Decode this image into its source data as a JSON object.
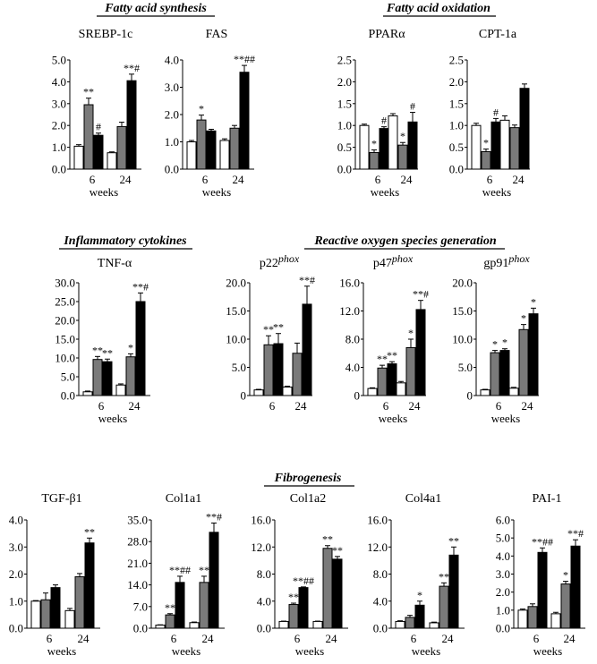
{
  "colors": {
    "control": "#ffffff",
    "treatment_a": "#7a7a7a",
    "treatment_b": "#000000",
    "axis": "#000000"
  },
  "sections": [
    {
      "id": "fas",
      "title": "Fatty acid synthesis"
    },
    {
      "id": "fao",
      "title": "Fatty acid oxidation"
    },
    {
      "id": "inf",
      "title": "Inflammatory cytokines"
    },
    {
      "id": "ros",
      "title": "Reactive oxygen species generation"
    },
    {
      "id": "fib",
      "title": "Fibrogenesis"
    }
  ],
  "chart_data": [
    {
      "type": "bar",
      "title": "SREBP-1c",
      "xlabel": "weeks",
      "categories": [
        "6",
        "24"
      ],
      "ylim": [
        0,
        5
      ],
      "yticks": [
        "0.0",
        "1.0",
        "2.0",
        "3.0",
        "4.0",
        "5.0"
      ],
      "series": [
        {
          "values": [
            1.05,
            0.75
          ],
          "errors": [
            0.07,
            0.04
          ],
          "sig": [
            "",
            ""
          ]
        },
        {
          "values": [
            2.95,
            1.95
          ],
          "errors": [
            0.3,
            0.2
          ],
          "sig": [
            "**",
            ""
          ]
        },
        {
          "values": [
            1.55,
            4.05
          ],
          "errors": [
            0.1,
            0.3
          ],
          "sig": [
            "#",
            "**#"
          ]
        }
      ]
    },
    {
      "type": "bar",
      "title": "FAS",
      "xlabel": "weeks",
      "categories": [
        "6",
        "24"
      ],
      "ylim": [
        0,
        4
      ],
      "yticks": [
        "0.0",
        "1.0",
        "2.0",
        "3.0",
        "4.0"
      ],
      "series": [
        {
          "values": [
            1.0,
            1.05
          ],
          "errors": [
            0.05,
            0.06
          ],
          "sig": [
            "",
            ""
          ]
        },
        {
          "values": [
            1.8,
            1.5
          ],
          "errors": [
            0.18,
            0.1
          ],
          "sig": [
            "*",
            ""
          ]
        },
        {
          "values": [
            1.4,
            3.55
          ],
          "errors": [
            0.06,
            0.25
          ],
          "sig": [
            "",
            "**##"
          ]
        }
      ]
    },
    {
      "type": "bar",
      "title": "PPARα",
      "xlabel": "weeks",
      "categories": [
        "6",
        "24"
      ],
      "ylim": [
        0,
        2.5
      ],
      "yticks": [
        "0.0",
        "0.5",
        "1.0",
        "1.5",
        "2.0",
        "2.5"
      ],
      "series": [
        {
          "values": [
            1.0,
            1.22
          ],
          "errors": [
            0.03,
            0.05
          ],
          "sig": [
            "",
            ""
          ]
        },
        {
          "values": [
            0.38,
            0.55
          ],
          "errors": [
            0.06,
            0.06
          ],
          "sig": [
            "*",
            "*"
          ]
        },
        {
          "values": [
            0.93,
            1.08
          ],
          "errors": [
            0.04,
            0.22
          ],
          "sig": [
            "#",
            "#"
          ]
        }
      ]
    },
    {
      "type": "bar",
      "title": "CPT-1a",
      "xlabel": "weeks",
      "categories": [
        "6",
        "24"
      ],
      "ylim": [
        0,
        2.5
      ],
      "yticks": [
        "0.0",
        "0.5",
        "1.0",
        "1.5",
        "2.0",
        "2.5"
      ],
      "series": [
        {
          "values": [
            1.0,
            1.12
          ],
          "errors": [
            0.05,
            0.1
          ],
          "sig": [
            "",
            ""
          ]
        },
        {
          "values": [
            0.4,
            0.95
          ],
          "errors": [
            0.06,
            0.06
          ],
          "sig": [
            "*",
            ""
          ]
        },
        {
          "values": [
            1.08,
            1.85
          ],
          "errors": [
            0.08,
            0.1
          ],
          "sig": [
            "#",
            ""
          ]
        }
      ]
    },
    {
      "type": "bar",
      "title": "TNF-α",
      "xlabel": "weeks",
      "categories": [
        "6",
        "24"
      ],
      "ylim": [
        0,
        30
      ],
      "yticks": [
        "0.0",
        "5.0",
        "10.0",
        "15.0",
        "20.0",
        "25.0",
        "30.0"
      ],
      "series": [
        {
          "values": [
            1.0,
            2.8
          ],
          "errors": [
            0.2,
            0.3
          ],
          "sig": [
            "",
            ""
          ]
        },
        {
          "values": [
            9.6,
            10.3
          ],
          "errors": [
            0.8,
            0.8
          ],
          "sig": [
            "**",
            "*"
          ]
        },
        {
          "values": [
            9.0,
            25.0
          ],
          "errors": [
            0.7,
            2.3
          ],
          "sig": [
            "**",
            "**#"
          ]
        }
      ]
    },
    {
      "type": "bar",
      "title": "p22",
      "title_suffix": "phox",
      "xlabel": "",
      "categories": [
        "6",
        "24"
      ],
      "ylim": [
        0,
        20
      ],
      "yticks": [
        "0",
        "5.0",
        "10.0",
        "15.0",
        "20.0"
      ],
      "series": [
        {
          "values": [
            1.0,
            1.5
          ],
          "errors": [
            0.1,
            0.15
          ],
          "sig": [
            "",
            ""
          ]
        },
        {
          "values": [
            9.0,
            7.5
          ],
          "errors": [
            1.6,
            1.8
          ],
          "sig": [
            "**",
            ""
          ]
        },
        {
          "values": [
            9.2,
            16.2
          ],
          "errors": [
            1.8,
            3.2
          ],
          "sig": [
            "**",
            "**#"
          ]
        }
      ]
    },
    {
      "type": "bar",
      "title": "p47",
      "title_suffix": "phox",
      "xlabel": "weeks",
      "categories": [
        "6",
        "24"
      ],
      "ylim": [
        0,
        16
      ],
      "yticks": [
        "0",
        "4.0",
        "8.0",
        "12.0",
        "16.0"
      ],
      "series": [
        {
          "values": [
            1.0,
            1.8
          ],
          "errors": [
            0.1,
            0.2
          ],
          "sig": [
            "",
            ""
          ]
        },
        {
          "values": [
            3.9,
            6.8
          ],
          "errors": [
            0.4,
            1.2
          ],
          "sig": [
            "**",
            "*"
          ]
        },
        {
          "values": [
            4.5,
            12.2
          ],
          "errors": [
            0.3,
            1.3
          ],
          "sig": [
            "**",
            "**#"
          ]
        }
      ]
    },
    {
      "type": "bar",
      "title": "gp91",
      "title_suffix": "phox",
      "xlabel": "weeks",
      "categories": [
        "6",
        "24"
      ],
      "ylim": [
        0,
        20
      ],
      "yticks": [
        "0",
        "5.0",
        "10.0",
        "15.0",
        "20.0"
      ],
      "series": [
        {
          "values": [
            1.0,
            1.3
          ],
          "errors": [
            0.1,
            0.15
          ],
          "sig": [
            "",
            ""
          ]
        },
        {
          "values": [
            7.6,
            11.7
          ],
          "errors": [
            0.4,
            0.9
          ],
          "sig": [
            "*",
            "*"
          ]
        },
        {
          "values": [
            8.0,
            14.5
          ],
          "errors": [
            0.3,
            1.0
          ],
          "sig": [
            "*",
            "*"
          ]
        }
      ]
    },
    {
      "type": "bar",
      "title": "TGF-β1",
      "xlabel": "weeks",
      "categories": [
        "6",
        "24"
      ],
      "ylim": [
        0,
        4
      ],
      "yticks": [
        "0.0",
        "1.0",
        "2.0",
        "3.0",
        "4.0"
      ],
      "series": [
        {
          "values": [
            1.0,
            0.65
          ],
          "errors": [
            0.02,
            0.08
          ],
          "sig": [
            "",
            ""
          ]
        },
        {
          "values": [
            1.05,
            1.9
          ],
          "errors": [
            0.25,
            0.12
          ],
          "sig": [
            "",
            ""
          ]
        },
        {
          "values": [
            1.5,
            3.15
          ],
          "errors": [
            0.1,
            0.18
          ],
          "sig": [
            "",
            "**"
          ]
        }
      ]
    },
    {
      "type": "bar",
      "title": "Col1a1",
      "xlabel": "weeks",
      "categories": [
        "6",
        "24"
      ],
      "ylim": [
        0,
        35
      ],
      "yticks": [
        "0.0",
        "7.0",
        "14.0",
        "21.0",
        "28.0",
        "35.0"
      ],
      "series": [
        {
          "values": [
            1.0,
            1.8
          ],
          "errors": [
            0.1,
            0.2
          ],
          "sig": [
            "",
            ""
          ]
        },
        {
          "values": [
            4.3,
            14.8
          ],
          "errors": [
            0.4,
            2.0
          ],
          "sig": [
            "**",
            "**"
          ]
        },
        {
          "values": [
            14.8,
            31.0
          ],
          "errors": [
            2.0,
            3.0
          ],
          "sig": [
            "**##",
            "**#"
          ]
        }
      ]
    },
    {
      "type": "bar",
      "title": "Col1a2",
      "xlabel": "weeks",
      "categories": [
        "6",
        "24"
      ],
      "ylim": [
        0,
        16
      ],
      "yticks": [
        "0.0",
        "4.0",
        "8.0",
        "12.0",
        "16.0"
      ],
      "series": [
        {
          "values": [
            1.0,
            1.0
          ],
          "errors": [
            0.05,
            0.05
          ],
          "sig": [
            "",
            ""
          ]
        },
        {
          "values": [
            3.5,
            11.8
          ],
          "errors": [
            0.2,
            0.4
          ],
          "sig": [
            "**",
            "**"
          ]
        },
        {
          "values": [
            6.0,
            10.2
          ],
          "errors": [
            0.1,
            0.4
          ],
          "sig": [
            "**##",
            "**"
          ]
        }
      ]
    },
    {
      "type": "bar",
      "title": "Col4a1",
      "xlabel": "weeks",
      "categories": [
        "6",
        "24"
      ],
      "ylim": [
        0,
        16
      ],
      "yticks": [
        "0.0",
        "4.0",
        "8.0",
        "12.0",
        "16.0"
      ],
      "series": [
        {
          "values": [
            1.0,
            0.8
          ],
          "errors": [
            0.1,
            0.1
          ],
          "sig": [
            "",
            ""
          ]
        },
        {
          "values": [
            1.6,
            6.2
          ],
          "errors": [
            0.3,
            0.5
          ],
          "sig": [
            "",
            "**"
          ]
        },
        {
          "values": [
            3.4,
            10.8
          ],
          "errors": [
            0.6,
            1.2
          ],
          "sig": [
            "*",
            "**"
          ]
        }
      ]
    },
    {
      "type": "bar",
      "title": "PAI-1",
      "xlabel": "weeks",
      "categories": [
        "6",
        "24"
      ],
      "ylim": [
        0,
        6
      ],
      "yticks": [
        "0.0",
        "1.0",
        "2.0",
        "3.0",
        "4.0",
        "5.0",
        "6.0"
      ],
      "series": [
        {
          "values": [
            1.0,
            0.8
          ],
          "errors": [
            0.06,
            0.08
          ],
          "sig": [
            "",
            ""
          ]
        },
        {
          "values": [
            1.2,
            2.45
          ],
          "errors": [
            0.15,
            0.15
          ],
          "sig": [
            "",
            "*"
          ]
        },
        {
          "values": [
            4.2,
            4.55
          ],
          "errors": [
            0.25,
            0.35
          ],
          "sig": [
            "**##",
            "**#"
          ]
        }
      ]
    }
  ]
}
